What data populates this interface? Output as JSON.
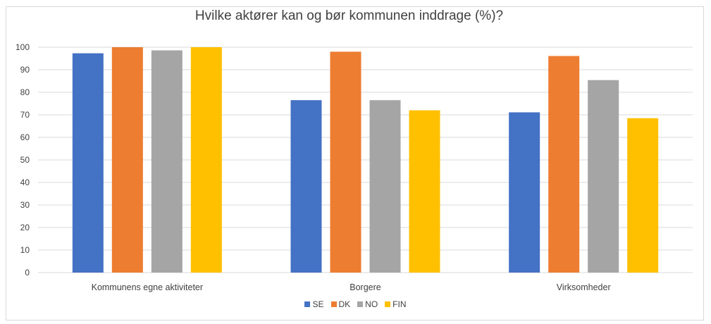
{
  "chart_data": {
    "type": "bar",
    "title": "Hvilke aktører kan og bør kommunen inddrage (%)?",
    "categories": [
      "Kommunens egne aktiviteter",
      "Borgere",
      "Virksomheder"
    ],
    "series": [
      {
        "name": "SE",
        "color": "#4472C4",
        "values": [
          97.3,
          76.5,
          71.1
        ]
      },
      {
        "name": "DK",
        "color": "#ED7D31",
        "values": [
          100,
          98,
          96.1
        ]
      },
      {
        "name": "NO",
        "color": "#A5A5A5",
        "values": [
          98.6,
          76.5,
          85.4
        ]
      },
      {
        "name": "FIN",
        "color": "#FFC000",
        "values": [
          100,
          72,
          68.5
        ]
      }
    ],
    "yticks": [
      "0",
      "10",
      "20",
      "30",
      "40",
      "50",
      "60",
      "70",
      "80",
      "90",
      "100"
    ],
    "ylim": [
      0,
      100
    ],
    "grid": true,
    "legend_position": "bottom"
  }
}
